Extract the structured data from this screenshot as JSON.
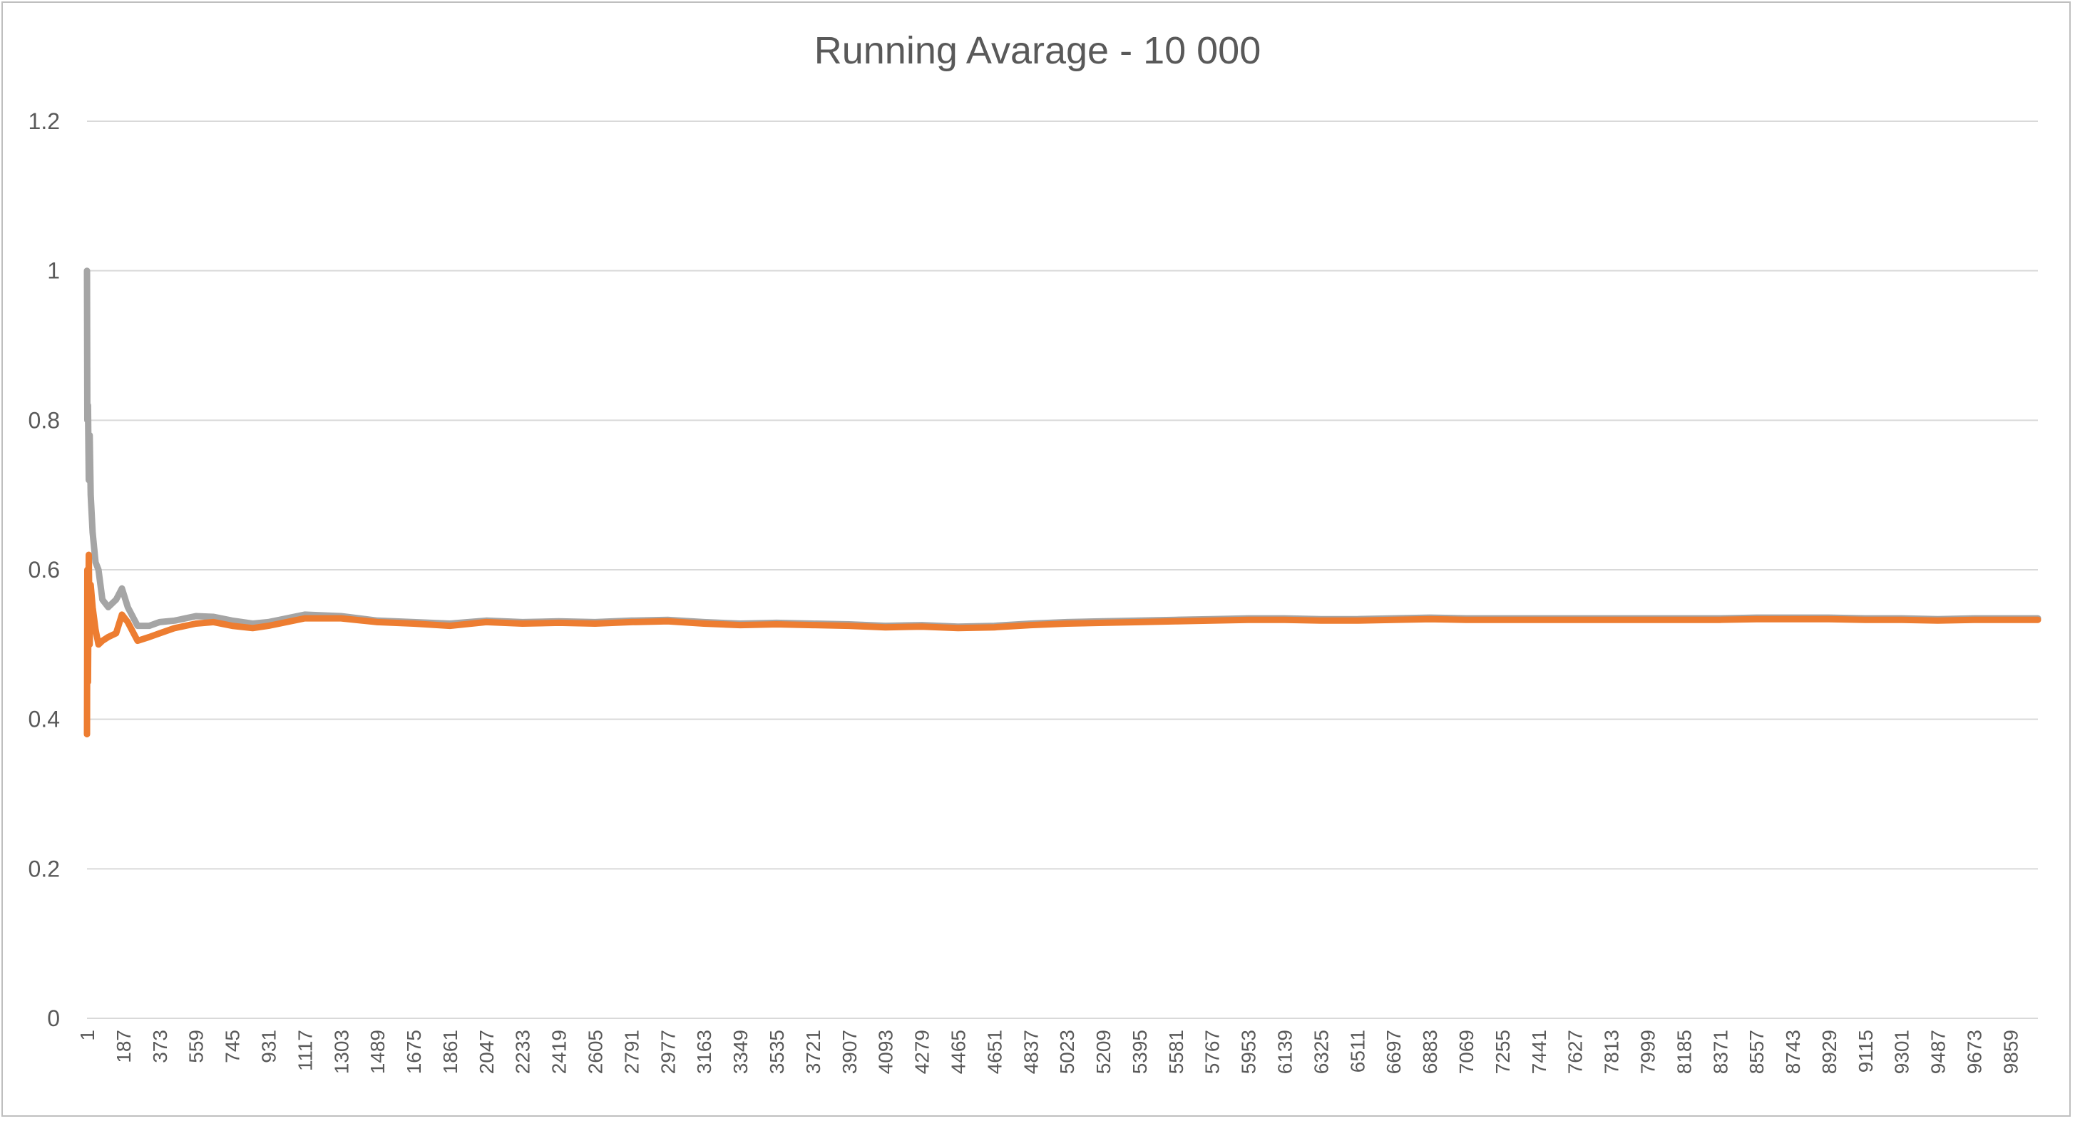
{
  "chart_data": {
    "type": "line",
    "title": "Running Avarage - 10 000",
    "xlabel": "",
    "ylabel": "",
    "ylim": [
      0,
      1.2
    ],
    "y_ticks": [
      "0",
      "0.2",
      "0.4",
      "0.6",
      "0.8",
      "1",
      "1.2"
    ],
    "x_range": [
      1,
      10000
    ],
    "x_tick_step": 186,
    "x_tick_labels": [
      "1",
      "187",
      "373",
      "559",
      "745",
      "931",
      "1117",
      "1303",
      "1489",
      "1675",
      "1861",
      "2047",
      "2233",
      "2419",
      "2605",
      "2791",
      "2977",
      "3163",
      "3349",
      "3535",
      "3721",
      "3907",
      "4093",
      "4279",
      "4465",
      "4651",
      "4837",
      "5023",
      "5209",
      "5395",
      "5581",
      "5767",
      "5953",
      "6139",
      "6325",
      "6511",
      "6697",
      "6883",
      "7069",
      "7255",
      "7441",
      "7627",
      "7813",
      "7999",
      "8185",
      "8371",
      "8557",
      "8743",
      "8929",
      "9115",
      "9301",
      "9487",
      "9673",
      "9859"
    ],
    "grid": true,
    "legend": "none",
    "colors": {
      "series_gray": "#a5a5a5",
      "series_orange": "#ed7d31",
      "grid": "#d9d9d9",
      "text": "#595959"
    },
    "series": [
      {
        "color": "#a5a5a5",
        "points": [
          [
            1,
            1.0
          ],
          [
            3,
            0.8
          ],
          [
            6,
            0.82
          ],
          [
            10,
            0.72
          ],
          [
            15,
            0.78
          ],
          [
            20,
            0.7
          ],
          [
            30,
            0.65
          ],
          [
            45,
            0.61
          ],
          [
            60,
            0.6
          ],
          [
            80,
            0.56
          ],
          [
            110,
            0.55
          ],
          [
            150,
            0.56
          ],
          [
            180,
            0.575
          ],
          [
            210,
            0.55
          ],
          [
            260,
            0.525
          ],
          [
            320,
            0.525
          ],
          [
            373,
            0.53
          ],
          [
            450,
            0.532
          ],
          [
            559,
            0.538
          ],
          [
            650,
            0.537
          ],
          [
            745,
            0.532
          ],
          [
            850,
            0.528
          ],
          [
            931,
            0.53
          ],
          [
            1117,
            0.54
          ],
          [
            1303,
            0.538
          ],
          [
            1489,
            0.532
          ],
          [
            1675,
            0.53
          ],
          [
            1861,
            0.528
          ],
          [
            2047,
            0.532
          ],
          [
            2233,
            0.53
          ],
          [
            2419,
            0.531
          ],
          [
            2605,
            0.53
          ],
          [
            2791,
            0.532
          ],
          [
            2977,
            0.533
          ],
          [
            3163,
            0.53
          ],
          [
            3349,
            0.528
          ],
          [
            3535,
            0.529
          ],
          [
            3721,
            0.528
          ],
          [
            3907,
            0.527
          ],
          [
            4093,
            0.525
          ],
          [
            4279,
            0.526
          ],
          [
            4465,
            0.524
          ],
          [
            4651,
            0.525
          ],
          [
            4837,
            0.528
          ],
          [
            5023,
            0.53
          ],
          [
            5209,
            0.531
          ],
          [
            5395,
            0.532
          ],
          [
            5581,
            0.533
          ],
          [
            5767,
            0.534
          ],
          [
            5953,
            0.535
          ],
          [
            6139,
            0.535
          ],
          [
            6325,
            0.534
          ],
          [
            6511,
            0.534
          ],
          [
            6697,
            0.535
          ],
          [
            6883,
            0.536
          ],
          [
            7069,
            0.535
          ],
          [
            7255,
            0.535
          ],
          [
            7441,
            0.535
          ],
          [
            7627,
            0.535
          ],
          [
            7813,
            0.535
          ],
          [
            7999,
            0.535
          ],
          [
            8185,
            0.535
          ],
          [
            8371,
            0.535
          ],
          [
            8557,
            0.536
          ],
          [
            8743,
            0.536
          ],
          [
            8929,
            0.536
          ],
          [
            9115,
            0.535
          ],
          [
            9301,
            0.535
          ],
          [
            9487,
            0.534
          ],
          [
            9673,
            0.535
          ],
          [
            9859,
            0.535
          ],
          [
            10000,
            0.535
          ]
        ]
      },
      {
        "color": "#ed7d31",
        "points": [
          [
            1,
            0.38
          ],
          [
            3,
            0.6
          ],
          [
            6,
            0.45
          ],
          [
            10,
            0.62
          ],
          [
            15,
            0.5
          ],
          [
            20,
            0.58
          ],
          [
            30,
            0.55
          ],
          [
            45,
            0.52
          ],
          [
            60,
            0.5
          ],
          [
            80,
            0.505
          ],
          [
            110,
            0.51
          ],
          [
            150,
            0.515
          ],
          [
            180,
            0.54
          ],
          [
            210,
            0.53
          ],
          [
            260,
            0.505
          ],
          [
            320,
            0.51
          ],
          [
            373,
            0.515
          ],
          [
            450,
            0.522
          ],
          [
            559,
            0.528
          ],
          [
            650,
            0.53
          ],
          [
            745,
            0.525
          ],
          [
            850,
            0.522
          ],
          [
            931,
            0.525
          ],
          [
            1117,
            0.535
          ],
          [
            1303,
            0.535
          ],
          [
            1489,
            0.53
          ],
          [
            1675,
            0.528
          ],
          [
            1861,
            0.525
          ],
          [
            2047,
            0.53
          ],
          [
            2233,
            0.528
          ],
          [
            2419,
            0.529
          ],
          [
            2605,
            0.528
          ],
          [
            2791,
            0.53
          ],
          [
            2977,
            0.531
          ],
          [
            3163,
            0.528
          ],
          [
            3349,
            0.526
          ],
          [
            3535,
            0.527
          ],
          [
            3721,
            0.526
          ],
          [
            3907,
            0.525
          ],
          [
            4093,
            0.523
          ],
          [
            4279,
            0.524
          ],
          [
            4465,
            0.522
          ],
          [
            4651,
            0.523
          ],
          [
            4837,
            0.526
          ],
          [
            5023,
            0.528
          ],
          [
            5209,
            0.529
          ],
          [
            5395,
            0.53
          ],
          [
            5581,
            0.531
          ],
          [
            5767,
            0.532
          ],
          [
            5953,
            0.533
          ],
          [
            6139,
            0.533
          ],
          [
            6325,
            0.532
          ],
          [
            6511,
            0.532
          ],
          [
            6697,
            0.533
          ],
          [
            6883,
            0.534
          ],
          [
            7069,
            0.533
          ],
          [
            7255,
            0.533
          ],
          [
            7441,
            0.533
          ],
          [
            7627,
            0.533
          ],
          [
            7813,
            0.533
          ],
          [
            7999,
            0.533
          ],
          [
            8185,
            0.533
          ],
          [
            8371,
            0.533
          ],
          [
            8557,
            0.534
          ],
          [
            8743,
            0.534
          ],
          [
            8929,
            0.534
          ],
          [
            9115,
            0.533
          ],
          [
            9301,
            0.533
          ],
          [
            9487,
            0.532
          ],
          [
            9673,
            0.533
          ],
          [
            9859,
            0.533
          ],
          [
            10000,
            0.533
          ]
        ]
      }
    ]
  }
}
